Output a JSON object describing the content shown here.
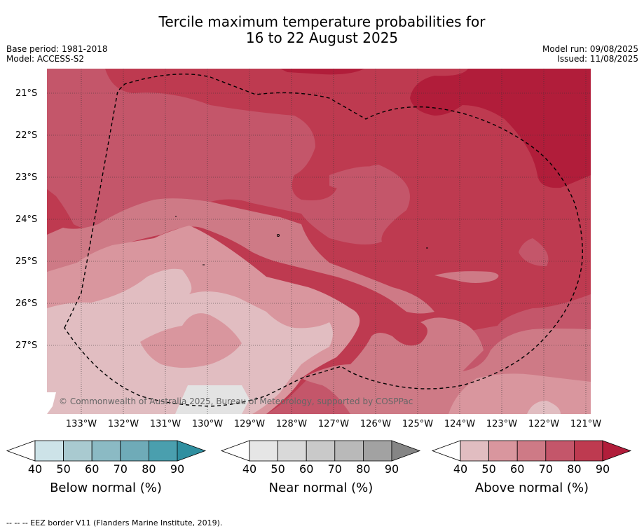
{
  "title": {
    "line1": "Tercile maximum temperature probabilities for",
    "line2": "16 to 22 August 2025"
  },
  "meta": {
    "base_period": "Base period: 1981-2018",
    "model": "Model: ACCESS-S2",
    "model_run": "Model run: 09/08/2025",
    "issued": "Issued: 11/08/2025"
  },
  "map": {
    "copyright": "© Commonwealth of Australia 2025, Bureau of Meteorology, supported by COSPPac",
    "lat_labels": [
      "21°S",
      "22°S",
      "23°S",
      "24°S",
      "25°S",
      "26°S",
      "27°S"
    ],
    "lon_labels": [
      "133°W",
      "132°W",
      "131°W",
      "130°W",
      "129°W",
      "128°W",
      "127°W",
      "126°W",
      "125°W",
      "124°W",
      "123°W",
      "122°W",
      "121°W"
    ],
    "colors": {
      "above_90": "#b11d3a",
      "above_80": "#be3a50",
      "above_70": "#c4566a",
      "above_60": "#ce7a86",
      "above_50": "#d9969e",
      "above_40": "#e1bdc1",
      "near_40": "#e3e3e3",
      "near_white": "#ffffff"
    }
  },
  "colorbars": [
    {
      "title": "Below normal (%)",
      "ticks": [
        "40",
        "50",
        "60",
        "70",
        "80",
        "90"
      ],
      "colors": [
        "#cde3e8",
        "#a9cad0",
        "#8bbac4",
        "#6fabb8",
        "#4a9fae",
        "#2f8fa0"
      ]
    },
    {
      "title": "Near normal (%)",
      "ticks": [
        "40",
        "50",
        "60",
        "70",
        "80",
        "90"
      ],
      "colors": [
        "#e6e6e6",
        "#d9d9d9",
        "#c9c9c9",
        "#b9b9b9",
        "#a2a2a2",
        "#858585"
      ]
    },
    {
      "title": "Above normal (%)",
      "ticks": [
        "40",
        "50",
        "60",
        "70",
        "80",
        "90"
      ],
      "colors": [
        "#e1bdc1",
        "#d9969e",
        "#ce7a86",
        "#c4566a",
        "#be3a50",
        "#b11d3a"
      ]
    }
  ],
  "footer": "--  --  -- EEZ border V11 (Flanders Marine Institute, 2019)."
}
